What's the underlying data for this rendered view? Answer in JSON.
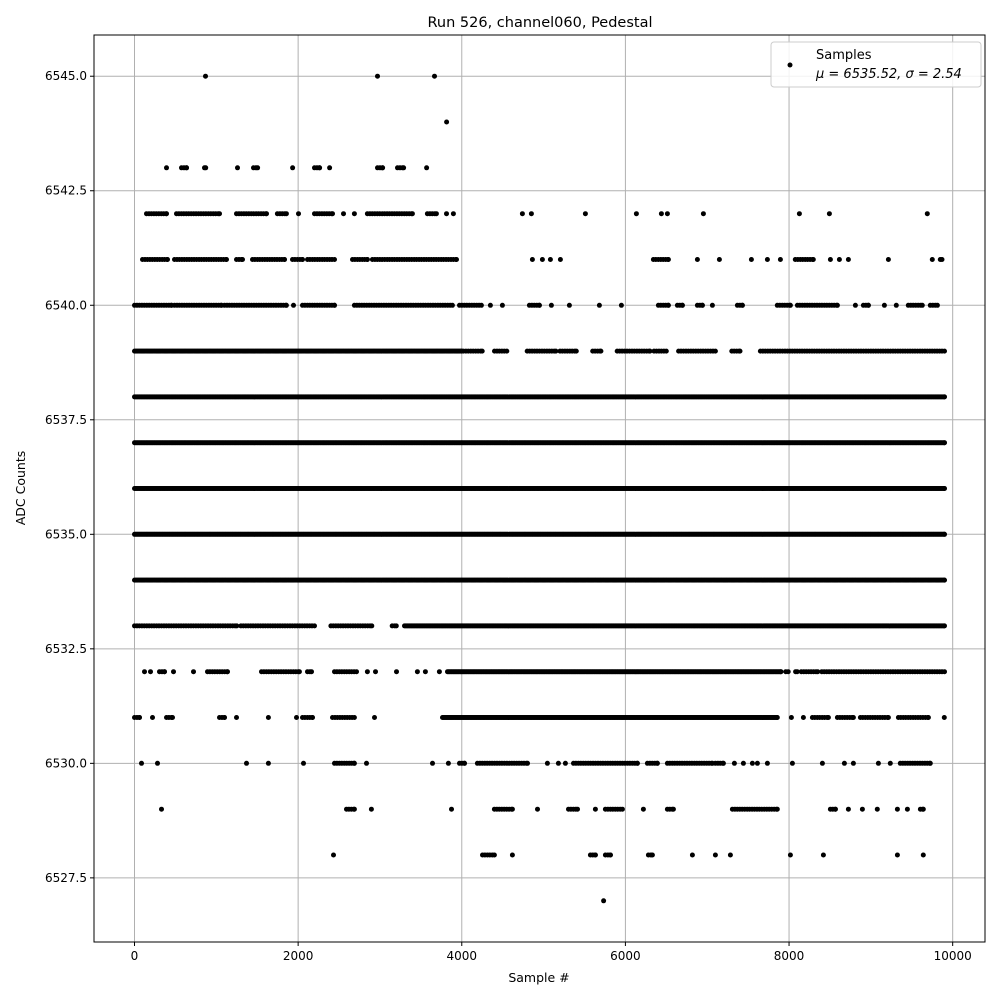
{
  "chart_data": {
    "type": "scatter",
    "title": "Run 526, channel060, Pedestal",
    "xlabel": "Sample #",
    "ylabel": "ADC Counts",
    "xlim": [
      -495,
      10395
    ],
    "ylim": [
      6526.1,
      6545.9
    ],
    "xticks": [
      0,
      2000,
      4000,
      6000,
      8000,
      10000
    ],
    "xtick_labels": [
      "0",
      "2000",
      "4000",
      "6000",
      "8000",
      "10000"
    ],
    "yticks": [
      6527.5,
      6530.0,
      6532.5,
      6535.0,
      6537.5,
      6540.0,
      6542.5,
      6545.0
    ],
    "ytick_labels": [
      "6527.5",
      "6530.0",
      "6532.5",
      "6535.0",
      "6537.5",
      "6540.0",
      "6542.5",
      "6545.0"
    ],
    "grid": true,
    "legend": {
      "placement": "upper-right",
      "entries": [
        {
          "label": "Samples",
          "stats": "μ = 6535.52, σ = 2.54"
        }
      ]
    },
    "marker_color": "#000000",
    "series": [
      {
        "name": "Samples",
        "levels": [
          {
            "y": 6545,
            "runs": [
              [
                868,
                868
              ],
              [
                2970,
                2970
              ],
              [
                3667,
                3667
              ]
            ]
          },
          {
            "y": 6544,
            "runs": [
              [
                3814,
                3814
              ]
            ]
          },
          {
            "y": 6543,
            "runs": [
              [
                391,
                391
              ],
              [
                575,
                636
              ],
              [
                856,
                870
              ],
              [
                1259,
                1259
              ],
              [
                1455,
                1504
              ],
              [
                1932,
                1932
              ],
              [
                2200,
                2262
              ],
              [
                2384,
                2384
              ],
              [
                2970,
                3032
              ],
              [
                3215,
                3289
              ],
              [
                3570,
                3570
              ]
            ]
          },
          {
            "y": 6542,
            "runs": [
              [
                147,
                391
              ],
              [
                513,
                1039
              ],
              [
                1247,
                1613
              ],
              [
                1747,
                1857
              ],
              [
                2004,
                2004
              ],
              [
                2200,
                2420
              ],
              [
                2554,
                2554
              ],
              [
                2688,
                2688
              ],
              [
                2847,
                3397
              ],
              [
                3580,
                3690
              ],
              [
                3813,
                3813
              ],
              [
                3898,
                3898
              ],
              [
                4741,
                4741
              ],
              [
                4851,
                4851
              ],
              [
                5511,
                5511
              ],
              [
                6134,
                6134
              ],
              [
                6440,
                6440
              ],
              [
                6513,
                6513
              ],
              [
                6953,
                6953
              ],
              [
                8126,
                8126
              ],
              [
                8493,
                8493
              ],
              [
                9690,
                9690
              ]
            ]
          },
          {
            "y": 6541,
            "runs": [
              [
                98,
                403
              ],
              [
                489,
                1124
              ],
              [
                1247,
                1320
              ],
              [
                1442,
                1833
              ],
              [
                1931,
                2053
              ],
              [
                2114,
                2444
              ],
              [
                2664,
                2847
              ],
              [
                2908,
                3935
              ],
              [
                4863,
                4863
              ],
              [
                4986,
                4986
              ],
              [
                5083,
                5083
              ],
              [
                5206,
                5206
              ],
              [
                6342,
                6525
              ],
              [
                6880,
                6880
              ],
              [
                7149,
                7149
              ],
              [
                7540,
                7540
              ],
              [
                7735,
                7735
              ],
              [
                7894,
                7894
              ],
              [
                8077,
                8297
              ],
              [
                8505,
                8505
              ],
              [
                8615,
                8615
              ],
              [
                8725,
                8725
              ],
              [
                9214,
                9214
              ],
              [
                9751,
                9751
              ],
              [
                9849,
                9870
              ]
            ]
          },
          {
            "y": 6540,
            "runs": [
              [
                0,
                452
              ],
              [
                489,
                1063
              ],
              [
                1100,
                1857
              ],
              [
                1943,
                1943
              ],
              [
                2053,
                2444
              ],
              [
                2688,
                3886
              ],
              [
                3972,
                4240
              ],
              [
                4350,
                4350
              ],
              [
                4497,
                4497
              ],
              [
                4827,
                4949
              ],
              [
                5096,
                5096
              ],
              [
                5316,
                5316
              ],
              [
                5682,
                5682
              ],
              [
                5951,
                5951
              ],
              [
                6403,
                6525
              ],
              [
                6635,
                6696
              ],
              [
                6880,
                6941
              ],
              [
                7063,
                7063
              ],
              [
                7369,
                7430
              ],
              [
                7857,
                8016
              ],
              [
                8102,
                8591
              ],
              [
                8811,
                8811
              ],
              [
                8909,
                8970
              ],
              [
                9165,
                9165
              ],
              [
                9311,
                9311
              ],
              [
                9458,
                9629
              ],
              [
                9727,
                9813
              ]
            ]
          },
          {
            "y": 6539,
            "runs": [
              [
                0,
                4000
              ],
              [
                4020,
                4250
              ],
              [
                4400,
                4550
              ],
              [
                4800,
                5150
              ],
              [
                5200,
                5400
              ],
              [
                5600,
                5700
              ],
              [
                5900,
                6300
              ],
              [
                6350,
                6500
              ],
              [
                6650,
                7100
              ],
              [
                7300,
                7400
              ],
              [
                7650,
                9900
              ]
            ]
          },
          {
            "y": 6538,
            "runs": [
              [
                0,
                9900
              ]
            ]
          },
          {
            "y": 6537,
            "runs": [
              [
                0,
                9900
              ]
            ]
          },
          {
            "y": 6536,
            "runs": [
              [
                0,
                9900
              ]
            ]
          },
          {
            "y": 6535,
            "runs": [
              [
                0,
                9900
              ]
            ]
          },
          {
            "y": 6534,
            "runs": [
              [
                0,
                9900
              ]
            ]
          },
          {
            "y": 6533,
            "runs": [
              [
                0,
                1250
              ],
              [
                1300,
                2200
              ],
              [
                2400,
                2900
              ],
              [
                3150,
                3200
              ],
              [
                3300,
                9900
              ]
            ]
          },
          {
            "y": 6532,
            "runs": [
              [
                122,
                122
              ],
              [
                196,
                196
              ],
              [
                306,
                367
              ],
              [
                477,
                477
              ],
              [
                721,
                721
              ],
              [
                892,
                1137
              ],
              [
                1552,
                2016
              ],
              [
                2114,
                2163
              ],
              [
                2444,
                2713
              ],
              [
                2847,
                2847
              ],
              [
                2945,
                2945
              ],
              [
                3202,
                3202
              ],
              [
                3458,
                3458
              ],
              [
                3556,
                3556
              ],
              [
                3727,
                3727
              ],
              [
                3825,
                7900
              ],
              [
                7960,
                7990
              ],
              [
                8080,
                8100
              ],
              [
                8150,
                8350
              ],
              [
                8400,
                9900
              ]
            ]
          },
          {
            "y": 6531,
            "runs": [
              [
                0,
                61
              ],
              [
                220,
                220
              ],
              [
                391,
                464
              ],
              [
                1039,
                1100
              ],
              [
                1247,
                1247
              ],
              [
                1637,
                1637
              ],
              [
                1980,
                1980
              ],
              [
                2053,
                2175
              ],
              [
                2420,
                2688
              ],
              [
                2933,
                2933
              ],
              [
                3764,
                7857
              ],
              [
                8029,
                8029
              ],
              [
                8175,
                8175
              ],
              [
                8285,
                8481
              ],
              [
                8591,
                8786
              ],
              [
                8872,
                9214
              ],
              [
                9336,
                9703
              ],
              [
                9898,
                9898
              ]
            ]
          },
          {
            "y": 6530,
            "runs": [
              [
                86,
                86
              ],
              [
                281,
                281
              ],
              [
                1369,
                1369
              ],
              [
                1637,
                1637
              ],
              [
                2065,
                2065
              ],
              [
                2444,
                2688
              ],
              [
                2835,
                2835
              ],
              [
                3642,
                3642
              ],
              [
                3837,
                3837
              ],
              [
                3972,
                4033
              ],
              [
                4191,
                4803
              ],
              [
                5047,
                5047
              ],
              [
                5181,
                5181
              ],
              [
                5267,
                5267
              ],
              [
                5365,
                6147
              ],
              [
                6269,
                6391
              ],
              [
                6513,
                7063
              ],
              [
                7100,
                7198
              ],
              [
                7332,
                7332
              ],
              [
                7442,
                7442
              ],
              [
                7552,
                7552
              ],
              [
                7613,
                7613
              ],
              [
                7735,
                7735
              ],
              [
                8041,
                8041
              ],
              [
                8408,
                8408
              ],
              [
                8676,
                8676
              ],
              [
                8786,
                8786
              ],
              [
                9092,
                9092
              ],
              [
                9238,
                9238
              ],
              [
                9360,
                9727
              ]
            ]
          },
          {
            "y": 6529,
            "runs": [
              [
                330,
                330
              ],
              [
                2591,
                2688
              ],
              [
                2896,
                2896
              ],
              [
                3874,
                3874
              ],
              [
                4399,
                4619
              ],
              [
                4925,
                4925
              ],
              [
                5304,
                5414
              ],
              [
                5633,
                5633
              ],
              [
                5756,
                5963
              ],
              [
                6220,
                6220
              ],
              [
                6513,
                6586
              ],
              [
                7308,
                7857
              ],
              [
                8505,
                8566
              ],
              [
                8725,
                8725
              ],
              [
                8896,
                8896
              ],
              [
                9079,
                9079
              ],
              [
                9324,
                9324
              ],
              [
                9446,
                9446
              ],
              [
                9605,
                9641
              ]
            ]
          },
          {
            "y": 6528,
            "runs": [
              [
                2432,
                2432
              ],
              [
                4253,
                4399
              ],
              [
                4619,
                4619
              ],
              [
                5572,
                5633
              ],
              [
                5756,
                5817
              ],
              [
                6281,
                6330
              ],
              [
                6819,
                6819
              ],
              [
                7100,
                7100
              ],
              [
                7283,
                7283
              ],
              [
                8016,
                8016
              ],
              [
                8420,
                8420
              ],
              [
                9324,
                9324
              ],
              [
                9641,
                9641
              ]
            ]
          },
          {
            "y": 6527,
            "runs": [
              [
                5733,
                5733
              ]
            ]
          }
        ]
      }
    ]
  }
}
